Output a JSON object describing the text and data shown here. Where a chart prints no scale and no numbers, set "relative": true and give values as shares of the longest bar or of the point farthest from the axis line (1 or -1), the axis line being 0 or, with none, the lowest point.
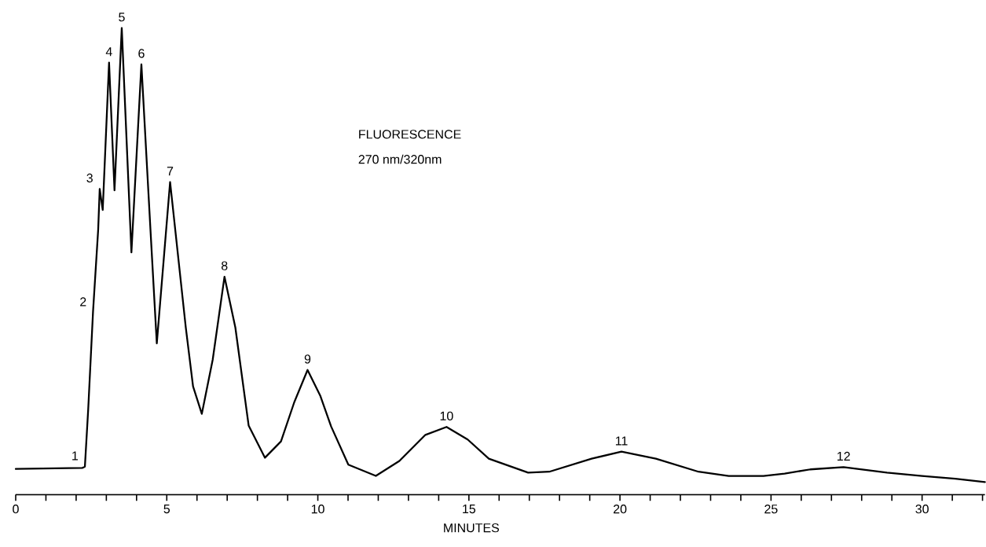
{
  "chart_data": {
    "type": "line",
    "relative": true,
    "xlabel": "MINUTES",
    "annotations": [
      "FLUORESCENCE",
      "270 nm/320nm",
      {
        "text": "1",
        "x": 2.29,
        "y": 0.06
      },
      {
        "text": "2",
        "x": 2.56,
        "y": 0.39
      },
      {
        "text": "3",
        "x": 2.78,
        "y": 0.655
      },
      {
        "text": "4",
        "x": 3.09,
        "y": 0.926
      },
      {
        "text": "5",
        "x": 3.51,
        "y": 1.0
      },
      {
        "text": "6",
        "x": 4.16,
        "y": 0.922
      },
      {
        "text": "7",
        "x": 5.11,
        "y": 0.67
      },
      {
        "text": "8",
        "x": 6.91,
        "y": 0.467
      },
      {
        "text": "9",
        "x": 9.66,
        "y": 0.267
      },
      {
        "text": "10",
        "x": 14.26,
        "y": 0.145
      },
      {
        "text": "11",
        "x": 20.05,
        "y": 0.092
      },
      {
        "text": "12",
        "x": 27.4,
        "y": 0.059
      }
    ],
    "xlim": [
      0,
      32.08
    ],
    "xticks": [
      0,
      {
        "value": 1,
        "label": null
      },
      {
        "value": 2,
        "label": null
      },
      {
        "value": 3,
        "label": null
      },
      {
        "value": 4,
        "label": null
      },
      5,
      {
        "value": 6,
        "label": null
      },
      {
        "value": 7,
        "label": null
      },
      {
        "value": 8,
        "label": null
      },
      {
        "value": 9,
        "label": null
      },
      10,
      {
        "value": 11,
        "label": null
      },
      {
        "value": 12,
        "label": null
      },
      {
        "value": 13,
        "label": null
      },
      {
        "value": 14,
        "label": null
      },
      15,
      {
        "value": 16,
        "label": null
      },
      {
        "value": 17,
        "label": null
      },
      {
        "value": 18,
        "label": null
      },
      {
        "value": 19,
        "label": null
      },
      20,
      {
        "value": 21,
        "label": null
      },
      {
        "value": 22,
        "label": null
      },
      {
        "value": 23,
        "label": null
      },
      {
        "value": 24,
        "label": null
      },
      25,
      {
        "value": 26,
        "label": null
      },
      {
        "value": 27,
        "label": null
      },
      {
        "value": 28,
        "label": null
      },
      {
        "value": 29,
        "label": null
      },
      30,
      {
        "value": 31,
        "label": null
      },
      {
        "value": 32,
        "label": null
      }
    ],
    "series": [
      {
        "color": "#000000",
        "x": [
          0,
          2.2,
          2.29,
          2.4,
          2.56,
          2.73,
          2.78,
          2.88,
          3.09,
          3.27,
          3.51,
          3.83,
          4.16,
          4.46,
          4.67,
          5.11,
          5.63,
          5.87,
          6.16,
          6.52,
          6.91,
          7.27,
          7.71,
          8.25,
          8.78,
          9.22,
          9.66,
          10.08,
          10.44,
          11.01,
          11.92,
          12.7,
          13.56,
          14.26,
          14.96,
          15.66,
          16.96,
          17.66,
          19.06,
          20.05,
          21.19,
          22.6,
          23.6,
          24.75,
          25.45,
          26.3,
          27.4,
          28.84,
          30.0,
          31.1,
          32.08
        ],
        "values": [
          0.055,
          0.057,
          0.06,
          0.183,
          0.393,
          0.568,
          0.655,
          0.61,
          0.926,
          0.652,
          1.0,
          0.519,
          0.922,
          0.568,
          0.324,
          0.67,
          0.358,
          0.232,
          0.173,
          0.289,
          0.467,
          0.358,
          0.148,
          0.079,
          0.114,
          0.198,
          0.267,
          0.212,
          0.146,
          0.064,
          0.04,
          0.072,
          0.128,
          0.145,
          0.118,
          0.077,
          0.047,
          0.049,
          0.077,
          0.092,
          0.077,
          0.049,
          0.04,
          0.04,
          0.045,
          0.054,
          0.059,
          0.047,
          0.04,
          0.034,
          0.027
        ]
      }
    ]
  }
}
